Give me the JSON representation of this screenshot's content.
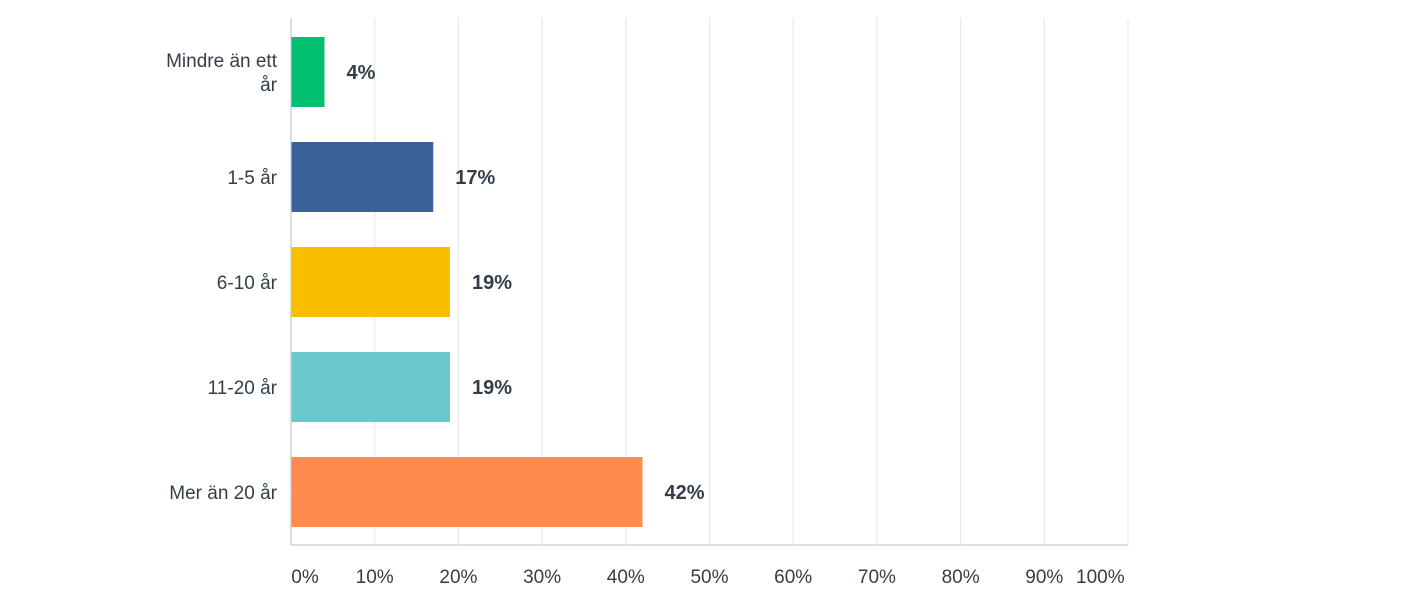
{
  "chart_data": {
    "type": "bar",
    "orientation": "horizontal",
    "title": "",
    "xlabel": "",
    "ylabel": "",
    "categories": [
      "Mindre än ett år",
      "1-5 år",
      "6-10 år",
      "11-20 år",
      "Mer än 20 år"
    ],
    "category_label_lines": [
      [
        "Mindre än ett",
        "år"
      ],
      [
        "1-5 år"
      ],
      [
        "6-10 år"
      ],
      [
        "11-20 år"
      ],
      [
        "Mer än 20 år"
      ]
    ],
    "values": [
      4,
      17,
      19,
      19,
      42
    ],
    "value_labels": [
      "4%",
      "17%",
      "19%",
      "19%",
      "42%"
    ],
    "colors": [
      "#00bf6f",
      "#3a6198",
      "#f9be00",
      "#6bc8cd",
      "#ff8b4f"
    ],
    "xlim": [
      0,
      100
    ],
    "x_ticks": [
      0,
      10,
      20,
      30,
      40,
      50,
      60,
      70,
      80,
      90,
      100
    ],
    "x_tick_labels": [
      "0%",
      "10%",
      "20%",
      "30%",
      "40%",
      "50%",
      "60%",
      "70%",
      "80%",
      "90%",
      "100%"
    ],
    "grid": true,
    "legend": "none"
  }
}
